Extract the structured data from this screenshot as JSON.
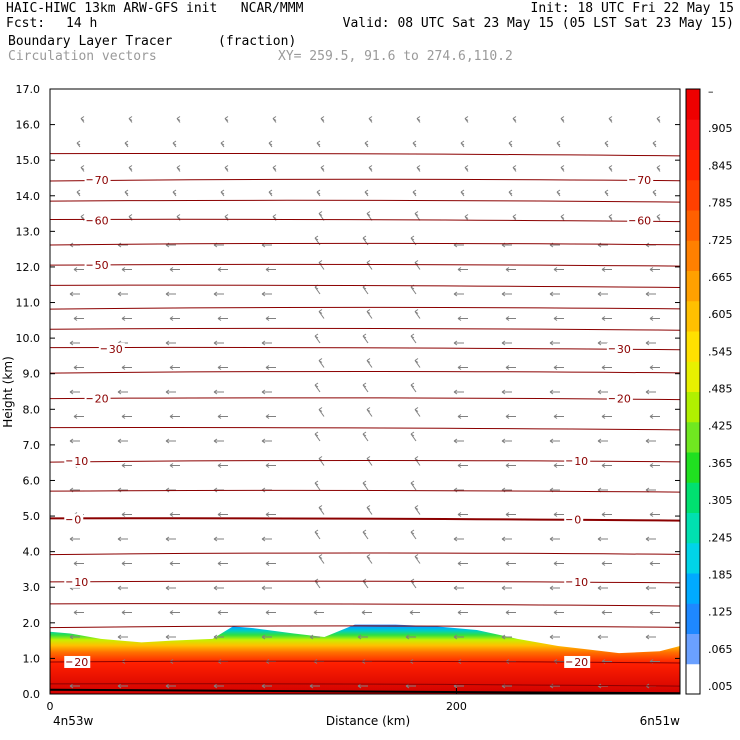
{
  "header": {
    "line1_left": "HAIC-HIWC 13km ARW-GFS init   NCAR/MMM",
    "line1_right": "Init: 18 UTC Fri 22 May 15",
    "line2_left_label": "Fcst:",
    "line2_left_value": "14 h",
    "line2_right": "Valid: 08 UTC Sat 23 May 15 (05 LST Sat 23 May 15)",
    "field_name": "Boundary Layer Tracer",
    "field_units": "(fraction)",
    "vector_name": "Circulation vectors",
    "cross_section": "XY= 259.5, 91.6 to 274.6,110.2"
  },
  "colors": {
    "axis": "#000000",
    "contour": "#8b0000",
    "vector": "#808080"
  },
  "chart_data": {
    "type": "heatmap",
    "xlabel": "Distance (km)",
    "ylabel": "Height (km)",
    "xlim": [
      0,
      310
    ],
    "ylim": [
      0,
      17
    ],
    "x_ticks": [
      0,
      200
    ],
    "y_ticks": [
      "0.0",
      "1.0",
      "2.0",
      "3.0",
      "4.0",
      "5.0",
      "6.0",
      "7.0",
      "8.0",
      "9.0",
      "10.0",
      "11.0",
      "12.0",
      "13.0",
      "14.0",
      "15.0",
      "16.0",
      "17.0"
    ],
    "x_endpoints": {
      "left": "4n53w",
      "right": "6n51w"
    },
    "colorbar": {
      "labels": [
        ".005",
        ".065",
        ".125",
        ".185",
        ".245",
        ".305",
        ".365",
        ".425",
        ".485",
        ".545",
        ".605",
        ".665",
        ".725",
        ".785",
        ".845",
        ".905",
        "–"
      ],
      "colors": [
        "#ffffff",
        "#6aa0ff",
        "#1e88ff",
        "#00aaff",
        "#00d4e8",
        "#00e0b0",
        "#00e070",
        "#20e020",
        "#70e820",
        "#b0f000",
        "#e8f000",
        "#ffe000",
        "#ffc000",
        "#ffa000",
        "#ff8000",
        "#ff6000",
        "#ff4000",
        "#ff2000",
        "#f81010",
        "#ee0000"
      ]
    },
    "tracer_top_km": {
      "x": [
        0,
        10,
        25,
        45,
        60,
        80,
        90,
        100,
        120,
        135,
        150,
        170,
        190,
        210,
        230,
        250,
        265,
        280,
        300,
        310
      ],
      "y": [
        1.75,
        1.7,
        1.55,
        1.45,
        1.5,
        1.55,
        1.9,
        1.85,
        1.7,
        1.6,
        1.95,
        1.95,
        1.9,
        1.8,
        1.55,
        1.35,
        1.25,
        1.15,
        1.2,
        1.35
      ]
    },
    "temperature_contours": {
      "label_values": [
        "-70",
        "-60",
        "-50",
        "30",
        "20",
        "10",
        "0",
        "10",
        "20"
      ],
      "levels_km": [
        0.25,
        0.9,
        1.9,
        2.5,
        3.15,
        3.95,
        4.9,
        5.7,
        6.55,
        7.45,
        8.3,
        9.05,
        9.7,
        10.25,
        10.85,
        11.45,
        12.05,
        12.65,
        13.3,
        13.85,
        14.45,
        15.15
      ],
      "labels": [
        {
          "text": "20",
          "x": 8,
          "y": 0.9
        },
        {
          "text": "10",
          "x": 8,
          "y": 3.15
        },
        {
          "text": "0",
          "x": 8,
          "y": 4.9
        },
        {
          "text": "10",
          "x": 8,
          "y": 6.55
        },
        {
          "text": "20",
          "x": 18,
          "y": 8.3
        },
        {
          "text": "30",
          "x": 25,
          "y": 9.7
        },
        {
          "text": "50",
          "x": 18,
          "y": 12.05
        },
        {
          "text": "60",
          "x": 18,
          "y": 13.3
        },
        {
          "text": "70",
          "x": 18,
          "y": 14.45
        },
        {
          "text": "20",
          "x": 254,
          "y": 0.9
        },
        {
          "text": "10",
          "x": 254,
          "y": 3.15
        },
        {
          "text": "0",
          "x": 254,
          "y": 4.9
        },
        {
          "text": "10",
          "x": 254,
          "y": 6.55
        },
        {
          "text": "20",
          "x": 275,
          "y": 8.3
        },
        {
          "text": "30",
          "x": 275,
          "y": 9.7
        },
        {
          "text": "60",
          "x": 285,
          "y": 13.3
        },
        {
          "text": "70",
          "x": 285,
          "y": 14.45
        }
      ]
    }
  }
}
